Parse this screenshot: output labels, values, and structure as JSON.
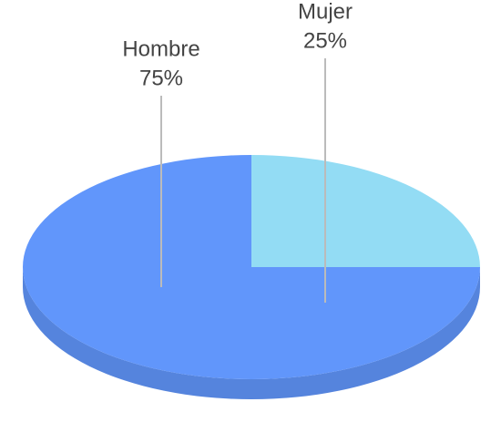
{
  "chart_data": {
    "type": "pie3d",
    "categories": [
      "Hombre",
      "Mujer"
    ],
    "values": [
      75,
      25
    ],
    "value_labels": [
      "75%",
      "25%"
    ],
    "colors": [
      "#6196fb",
      "#93dcf4"
    ]
  }
}
